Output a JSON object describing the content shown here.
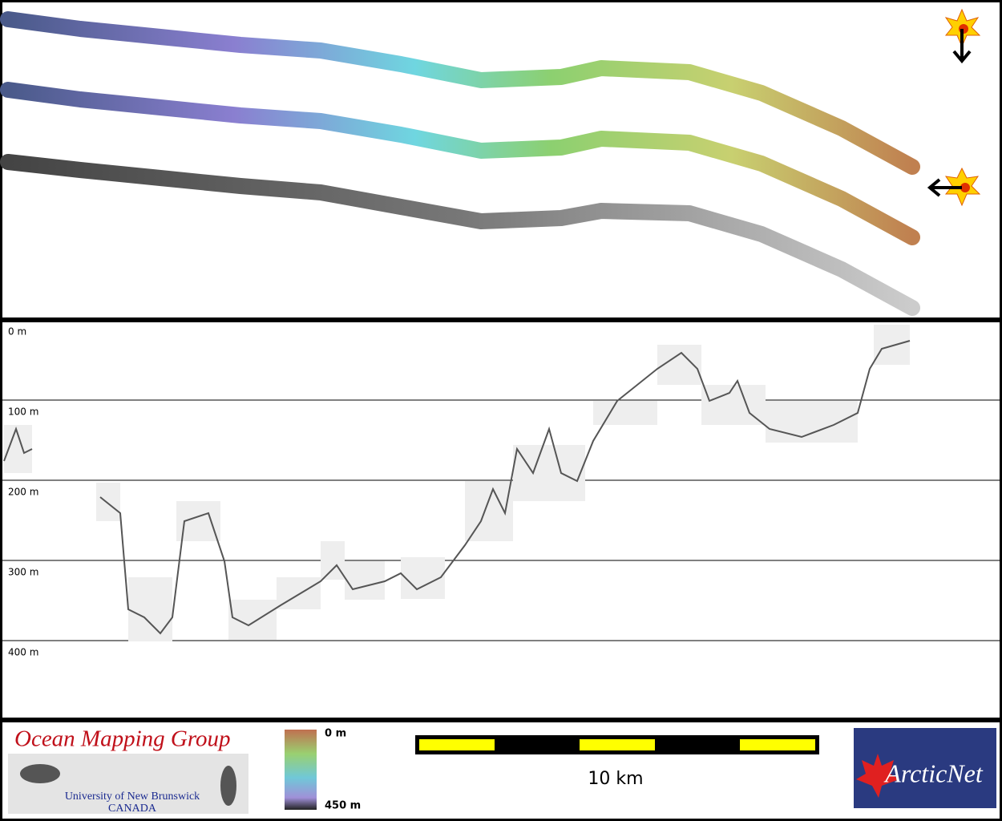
{
  "profile": {
    "depth_labels": [
      "0 m",
      "100 m",
      "200 m",
      "300 m",
      "400 m"
    ]
  },
  "footer": {
    "group": "Ocean Mapping Group",
    "university": "University of New Brunswick",
    "country": "CANADA",
    "colorbar": {
      "top": "0 m",
      "bottom": "450 m"
    },
    "scale": "10 km",
    "logo": "ArcticNet"
  }
}
